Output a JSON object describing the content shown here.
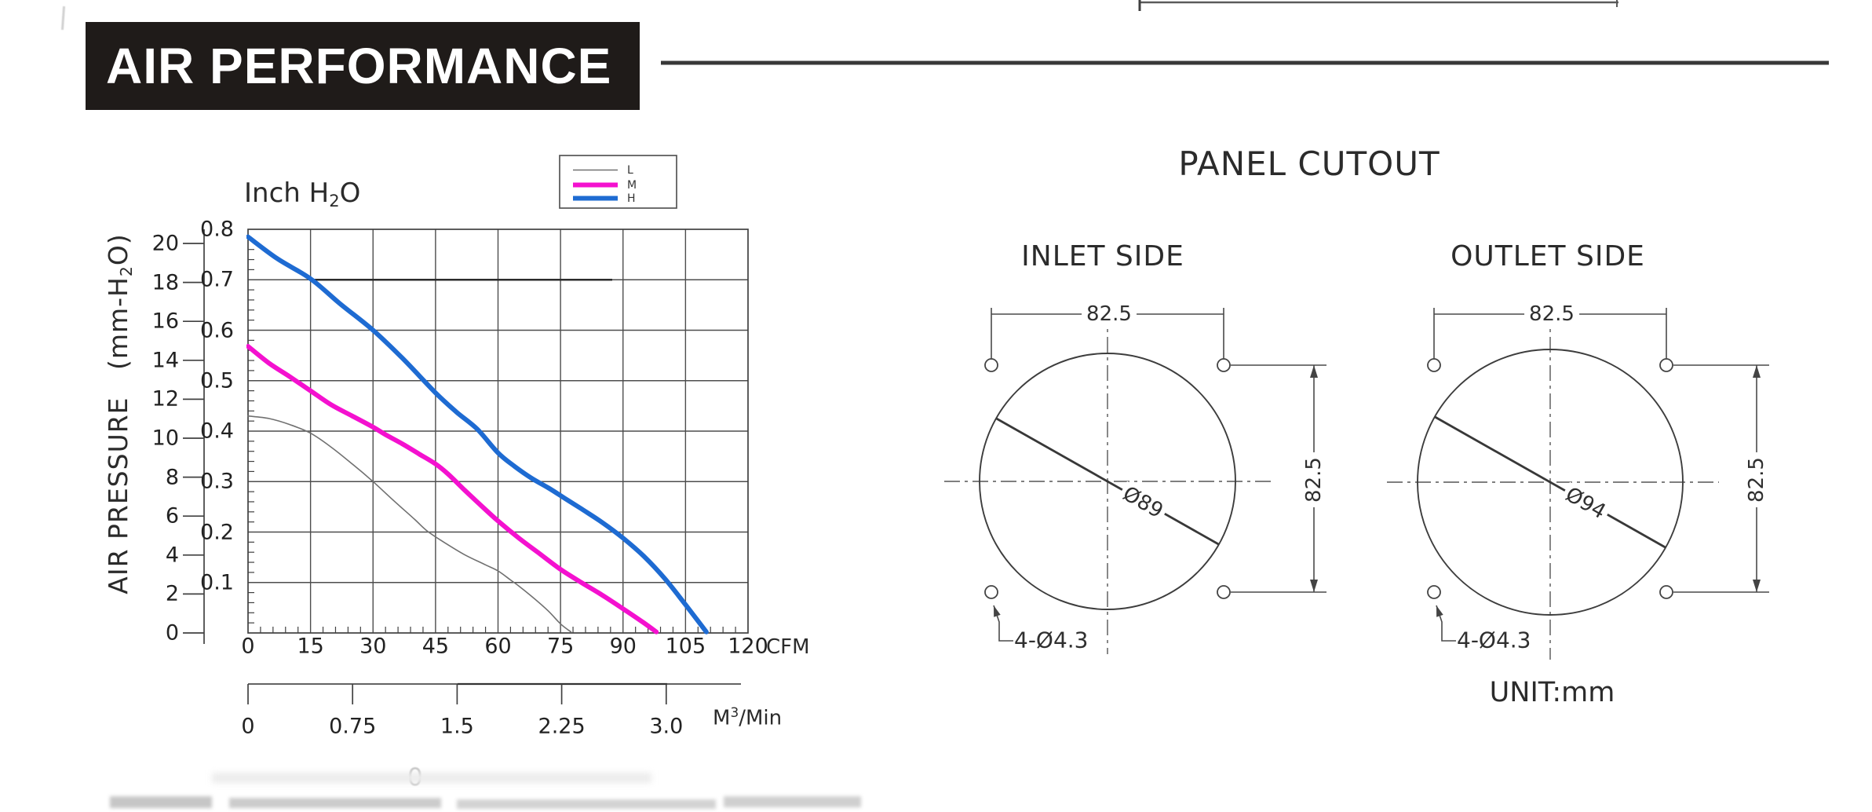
{
  "header": {
    "title": "AIR PERFORMANCE"
  },
  "chart_data": {
    "type": "line",
    "title": {
      "pre": "Inch H",
      "sub": "2",
      "post": "O"
    },
    "y_axis_label": {
      "pre": "AIR PRESSURE   (mm-H",
      "sub": "2",
      "post": "O)"
    },
    "x_axis": {
      "unit": "CFM",
      "min": 0,
      "max": 120,
      "major_ticks": [
        0,
        15,
        30,
        45,
        60,
        75,
        90,
        105,
        120
      ],
      "major_tick_labels": [
        "0",
        "15",
        "30",
        "45",
        "60",
        "75",
        "90",
        "105",
        "120"
      ],
      "minor_step": 3
    },
    "y_axis_inch": {
      "min": 0,
      "max": 0.8,
      "major_ticks": [
        0.1,
        0.2,
        0.3,
        0.4,
        0.5,
        0.6,
        0.7,
        0.8
      ],
      "tick_labels": [
        "0.1",
        "0.2",
        "0.3",
        "0.4",
        "0.5",
        "0.6",
        "0.7",
        "0.8"
      ],
      "minor_step": 0.02
    },
    "y_axis_mm": {
      "min": 0,
      "max": 20,
      "ticks": [
        0,
        2,
        4,
        6,
        8,
        10,
        12,
        14,
        16,
        18,
        20
      ],
      "tick_labels": [
        "0",
        "2",
        "4",
        "6",
        "8",
        "10",
        "12",
        "14",
        "16",
        "18",
        "20"
      ]
    },
    "x_axis_secondary": {
      "unit": {
        "pre": "M",
        "sup": "3",
        "post": "/Min"
      },
      "ticks": [
        0,
        0.75,
        1.5,
        2.25,
        3.0
      ],
      "tick_labels": [
        "0",
        "0.75",
        "1.5",
        "2.25",
        "3.0"
      ]
    },
    "legend": {
      "position": "top-right",
      "entries": [
        {
          "label": "L",
          "color": "#707070",
          "thickness": 1.6
        },
        {
          "label": "M",
          "color": "#f411cf",
          "thickness": 6
        },
        {
          "label": "H",
          "color": "#1e6bd2",
          "thickness": 6
        }
      ]
    },
    "grid": true,
    "series": [
      {
        "name": "L",
        "color": "#707070",
        "thickness": 1.6,
        "points": [
          [
            0,
            0.43
          ],
          [
            5,
            0.425
          ],
          [
            10,
            0.413
          ],
          [
            15,
            0.396
          ],
          [
            20,
            0.368
          ],
          [
            25,
            0.335
          ],
          [
            30,
            0.3
          ],
          [
            35,
            0.262
          ],
          [
            40,
            0.225
          ],
          [
            43,
            0.202
          ],
          [
            47,
            0.18
          ],
          [
            52,
            0.155
          ],
          [
            57,
            0.135
          ],
          [
            60,
            0.123
          ],
          [
            63,
            0.105
          ],
          [
            65,
            0.093
          ],
          [
            68,
            0.073
          ],
          [
            72,
            0.044
          ],
          [
            75,
            0.018
          ],
          [
            77.5,
            0.002
          ]
        ]
      },
      {
        "name": "M",
        "color": "#f411cf",
        "thickness": 6,
        "points": [
          [
            0,
            0.568
          ],
          [
            5,
            0.535
          ],
          [
            10,
            0.508
          ],
          [
            15,
            0.48
          ],
          [
            20,
            0.452
          ],
          [
            25,
            0.43
          ],
          [
            30,
            0.408
          ],
          [
            33,
            0.393
          ],
          [
            37,
            0.375
          ],
          [
            41,
            0.355
          ],
          [
            45,
            0.335
          ],
          [
            48,
            0.315
          ],
          [
            52,
            0.283
          ],
          [
            56,
            0.252
          ],
          [
            60,
            0.222
          ],
          [
            65,
            0.188
          ],
          [
            70,
            0.157
          ],
          [
            75,
            0.126
          ],
          [
            80,
            0.1
          ],
          [
            85,
            0.075
          ],
          [
            90,
            0.048
          ],
          [
            95,
            0.02
          ],
          [
            98,
            0.002
          ]
        ]
      },
      {
        "name": "H",
        "color": "#1e6bd2",
        "thickness": 6,
        "points": [
          [
            0,
            0.785
          ],
          [
            7,
            0.742
          ],
          [
            15,
            0.702
          ],
          [
            22,
            0.653
          ],
          [
            30,
            0.6
          ],
          [
            37,
            0.545
          ],
          [
            45,
            0.476
          ],
          [
            50,
            0.438
          ],
          [
            55,
            0.404
          ],
          [
            60,
            0.357
          ],
          [
            64,
            0.33
          ],
          [
            68,
            0.307
          ],
          [
            72,
            0.288
          ],
          [
            76,
            0.267
          ],
          [
            80,
            0.246
          ],
          [
            85,
            0.219
          ],
          [
            90,
            0.188
          ],
          [
            95,
            0.152
          ],
          [
            100,
            0.108
          ],
          [
            105,
            0.056
          ],
          [
            110,
            0.002
          ]
        ]
      }
    ]
  },
  "panel_cutout": {
    "title": "PANEL CUTOUT",
    "unit_label": "UNIT:mm",
    "inlet": {
      "title": "INLET SIDE",
      "width_dim": "82.5",
      "height_dim": "82.5",
      "diameter": "Ø89",
      "holes": "4-Ø4.3"
    },
    "outlet": {
      "title": "OUTLET SIDE",
      "width_dim": "82.5",
      "height_dim": "82.5",
      "diameter": "Ø94",
      "holes": "4-Ø4.3"
    }
  },
  "artifacts": {
    "faint_zero": "0"
  },
  "colors": {
    "ink": "#2b2b2b",
    "grid": "#4d4d4d",
    "frame": "#414141",
    "drawing": "#4a4a4a",
    "centerline": "#555555",
    "magenta": "#f411cf",
    "blue": "#1e6bd2",
    "thin_line": "#707070",
    "header_bg": "#1f1b19",
    "rule": "#383838"
  }
}
